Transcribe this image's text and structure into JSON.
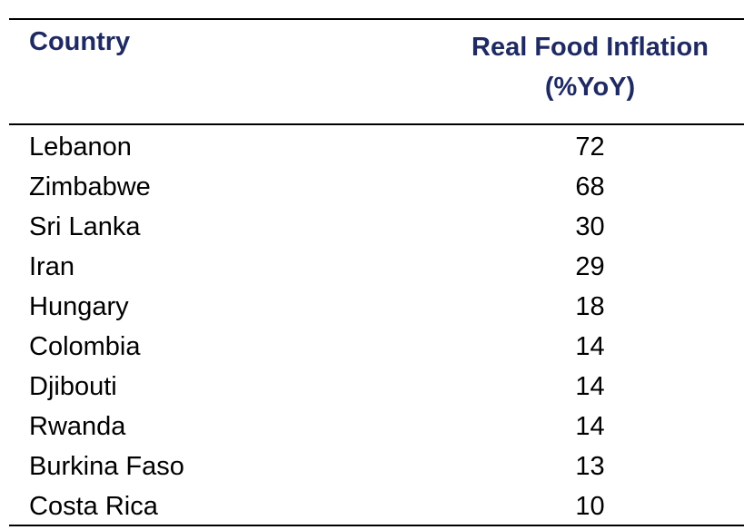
{
  "chart_data": {
    "type": "table",
    "columns": [
      "Country",
      "Real Food Inflation (%YoY)"
    ],
    "header": {
      "country": "Country",
      "value_line1": "Real Food Inflation",
      "value_line2": "(%YoY)"
    },
    "rows": [
      {
        "country": "Lebanon",
        "value": "72"
      },
      {
        "country": "Zimbabwe",
        "value": "68"
      },
      {
        "country": "Sri Lanka",
        "value": "30"
      },
      {
        "country": "Iran",
        "value": "29"
      },
      {
        "country": "Hungary",
        "value": "18"
      },
      {
        "country": "Colombia",
        "value": "14"
      },
      {
        "country": "Djibouti",
        "value": "14"
      },
      {
        "country": "Rwanda",
        "value": "14"
      },
      {
        "country": "Burkina Faso",
        "value": "13"
      },
      {
        "country": "Costa Rica",
        "value": "10"
      }
    ]
  },
  "colors": {
    "header_text": "#1f2a63",
    "body_text": "#000000",
    "rules": "#000000"
  }
}
